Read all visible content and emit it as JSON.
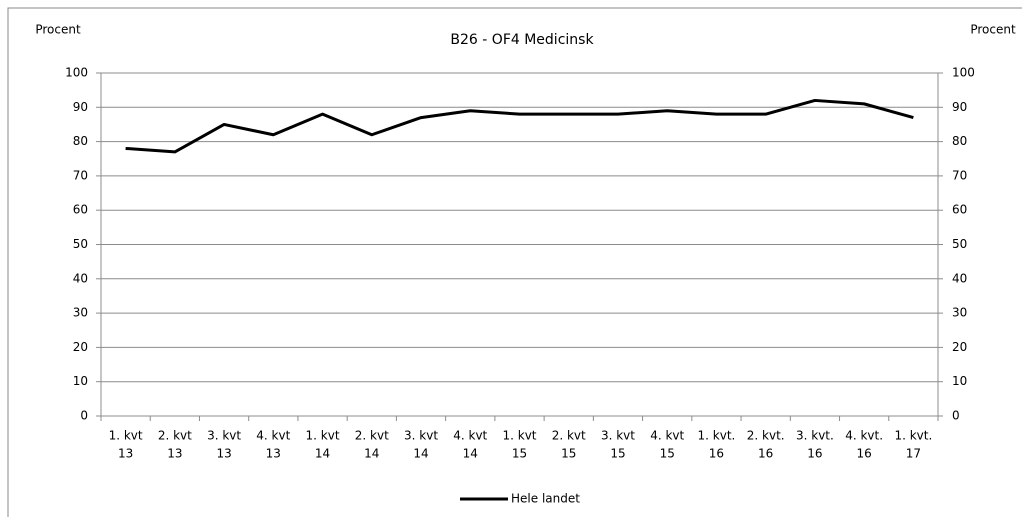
{
  "chart_data": {
    "type": "line",
    "title": "B26 - OF4 Medicinsk",
    "y_label": "Procent",
    "y2_label": "Procent",
    "categories": [
      [
        "1. kvt",
        "13"
      ],
      [
        "2. kvt",
        "13"
      ],
      [
        "3. kvt",
        "13"
      ],
      [
        "4. kvt",
        "13"
      ],
      [
        "1. kvt",
        "14"
      ],
      [
        "2. kvt",
        "14"
      ],
      [
        "3. kvt",
        "14"
      ],
      [
        "4. kvt",
        "14"
      ],
      [
        "1. kvt",
        "15"
      ],
      [
        "2. kvt",
        "15"
      ],
      [
        "3. kvt",
        "15"
      ],
      [
        "4. kvt",
        "15"
      ],
      [
        "1. kvt.",
        "16"
      ],
      [
        "2. kvt.",
        "16"
      ],
      [
        "3. kvt.",
        "16"
      ],
      [
        "4. kvt.",
        "16"
      ],
      [
        "1. kvt.",
        "17"
      ]
    ],
    "series": [
      {
        "name": "Hele landet",
        "color": "#000000",
        "values": [
          78,
          77,
          85,
          82,
          88,
          82,
          87,
          89,
          88,
          88,
          88,
          89,
          88,
          88,
          92,
          91,
          87
        ]
      }
    ],
    "ylim": [
      0,
      100
    ],
    "yticks": [
      0,
      10,
      20,
      30,
      40,
      50,
      60,
      70,
      80,
      90,
      100
    ],
    "y2lim": [
      0,
      100
    ],
    "y2ticks": [
      0,
      10,
      20,
      30,
      40,
      50,
      60,
      70,
      80,
      90,
      100
    ],
    "grid": true,
    "legend": "bottom"
  }
}
